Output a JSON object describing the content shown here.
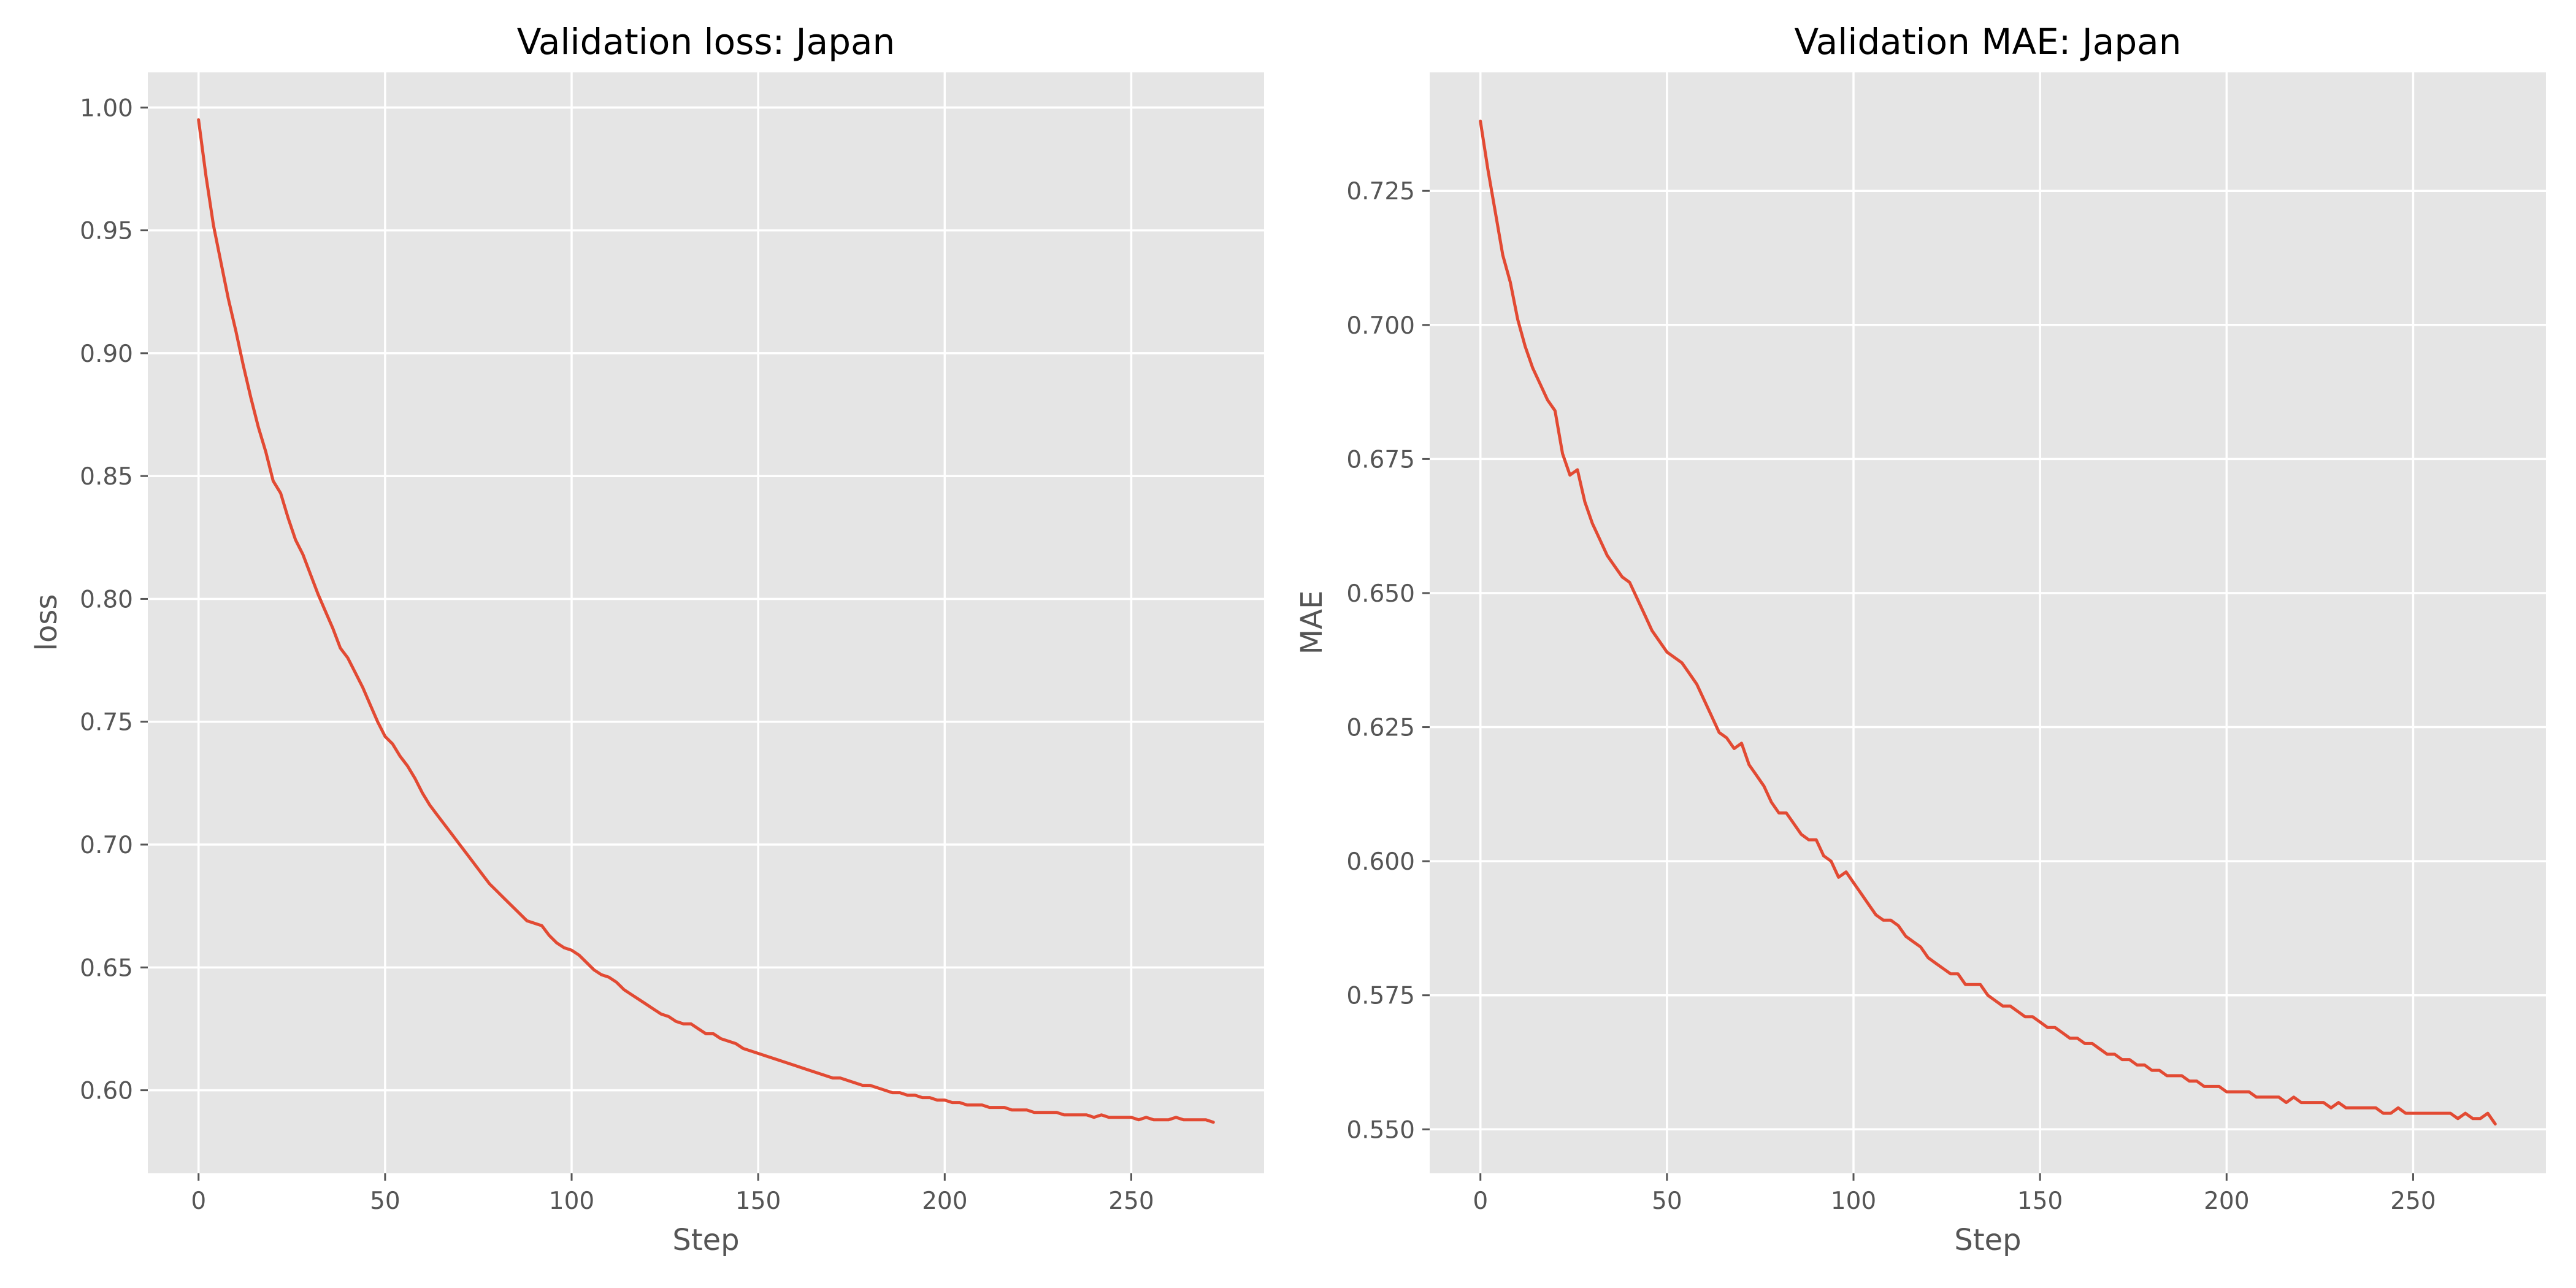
{
  "chart_data": [
    {
      "type": "line",
      "title": "Validation loss: Japan",
      "xlabel": "Step",
      "ylabel": "loss",
      "xlim": [
        -13.6,
        285.6
      ],
      "ylim": [
        0.5662,
        1.0143
      ],
      "xticks": [
        0,
        50,
        100,
        150,
        200,
        250
      ],
      "xtick_labels": [
        "0",
        "50",
        "100",
        "150",
        "200",
        "250"
      ],
      "yticks": [
        0.6,
        0.65,
        0.7,
        0.75,
        0.8,
        0.85,
        0.9,
        0.95,
        1.0
      ],
      "ytick_labels": [
        "0.60",
        "0.65",
        "0.70",
        "0.75",
        "0.80",
        "0.85",
        "0.90",
        "0.95",
        "1.00"
      ],
      "grid": true,
      "series": [
        {
          "color": "#E24A33",
          "x": [
            0,
            2,
            4,
            6,
            8,
            10,
            12,
            14,
            16,
            18,
            20,
            22,
            24,
            26,
            28,
            30,
            32,
            34,
            36,
            38,
            40,
            42,
            44,
            46,
            48,
            50,
            52,
            54,
            56,
            58,
            60,
            62,
            64,
            66,
            68,
            70,
            72,
            74,
            76,
            78,
            80,
            82,
            84,
            86,
            88,
            90,
            92,
            94,
            96,
            98,
            100,
            102,
            104,
            106,
            108,
            110,
            112,
            114,
            116,
            118,
            120,
            122,
            124,
            126,
            128,
            130,
            132,
            134,
            136,
            138,
            140,
            142,
            144,
            146,
            148,
            150,
            152,
            154,
            156,
            158,
            160,
            162,
            164,
            166,
            168,
            170,
            172,
            174,
            176,
            178,
            180,
            182,
            184,
            186,
            188,
            190,
            192,
            194,
            196,
            198,
            200,
            202,
            204,
            206,
            208,
            210,
            212,
            214,
            216,
            218,
            220,
            222,
            224,
            226,
            228,
            230,
            232,
            234,
            236,
            238,
            240,
            242,
            244,
            246,
            248,
            250,
            252,
            254,
            256,
            258,
            260,
            262,
            264,
            266,
            268,
            270,
            272
          ],
          "y": [
            0.995,
            0.972,
            0.952,
            0.937,
            0.922,
            0.909,
            0.895,
            0.882,
            0.87,
            0.86,
            0.848,
            0.843,
            0.833,
            0.824,
            0.818,
            0.81,
            0.802,
            0.795,
            0.788,
            0.78,
            0.776,
            0.77,
            0.764,
            0.757,
            0.75,
            0.744,
            0.741,
            0.736,
            0.732,
            0.727,
            0.721,
            0.716,
            0.712,
            0.708,
            0.704,
            0.7,
            0.696,
            0.692,
            0.688,
            0.684,
            0.681,
            0.678,
            0.675,
            0.672,
            0.669,
            0.668,
            0.667,
            0.663,
            0.66,
            0.658,
            0.657,
            0.655,
            0.652,
            0.649,
            0.647,
            0.646,
            0.644,
            0.641,
            0.639,
            0.637,
            0.635,
            0.633,
            0.631,
            0.63,
            0.628,
            0.627,
            0.627,
            0.625,
            0.623,
            0.623,
            0.621,
            0.62,
            0.619,
            0.617,
            0.616,
            0.615,
            0.614,
            0.613,
            0.612,
            0.611,
            0.61,
            0.609,
            0.608,
            0.607,
            0.606,
            0.605,
            0.605,
            0.604,
            0.603,
            0.602,
            0.602,
            0.601,
            0.6,
            0.599,
            0.599,
            0.598,
            0.598,
            0.597,
            0.597,
            0.596,
            0.596,
            0.595,
            0.595,
            0.594,
            0.594,
            0.594,
            0.593,
            0.593,
            0.593,
            0.592,
            0.592,
            0.592,
            0.591,
            0.591,
            0.591,
            0.591,
            0.59,
            0.59,
            0.59,
            0.59,
            0.589,
            0.59,
            0.589,
            0.589,
            0.589,
            0.589,
            0.588,
            0.589,
            0.588,
            0.588,
            0.588,
            0.589,
            0.588,
            0.588,
            0.588,
            0.588,
            0.587
          ]
        }
      ]
    },
    {
      "type": "line",
      "title": "Validation MAE: Japan",
      "xlabel": "Step",
      "ylabel": "MAE",
      "xlim": [
        -13.6,
        285.6
      ],
      "ylim": [
        0.5418,
        0.7471
      ],
      "xticks": [
        0,
        50,
        100,
        150,
        200,
        250
      ],
      "xtick_labels": [
        "0",
        "50",
        "100",
        "150",
        "200",
        "250"
      ],
      "yticks": [
        0.55,
        0.575,
        0.6,
        0.625,
        0.65,
        0.675,
        0.7,
        0.725
      ],
      "ytick_labels": [
        "0.550",
        "0.575",
        "0.600",
        "0.625",
        "0.650",
        "0.675",
        "0.700",
        "0.725"
      ],
      "grid": true,
      "series": [
        {
          "color": "#E24A33",
          "x": [
            0,
            2,
            4,
            6,
            8,
            10,
            12,
            14,
            16,
            18,
            20,
            22,
            24,
            26,
            28,
            30,
            32,
            34,
            36,
            38,
            40,
            42,
            44,
            46,
            48,
            50,
            52,
            54,
            56,
            58,
            60,
            62,
            64,
            66,
            68,
            70,
            72,
            74,
            76,
            78,
            80,
            82,
            84,
            86,
            88,
            90,
            92,
            94,
            96,
            98,
            100,
            102,
            104,
            106,
            108,
            110,
            112,
            114,
            116,
            118,
            120,
            122,
            124,
            126,
            128,
            130,
            132,
            134,
            136,
            138,
            140,
            142,
            144,
            146,
            148,
            150,
            152,
            154,
            156,
            158,
            160,
            162,
            164,
            166,
            168,
            170,
            172,
            174,
            176,
            178,
            180,
            182,
            184,
            186,
            188,
            190,
            192,
            194,
            196,
            198,
            200,
            202,
            204,
            206,
            208,
            210,
            212,
            214,
            216,
            218,
            220,
            222,
            224,
            226,
            228,
            230,
            232,
            234,
            236,
            238,
            240,
            242,
            244,
            246,
            248,
            250,
            252,
            254,
            256,
            258,
            260,
            262,
            264,
            266,
            268,
            270,
            272
          ],
          "y": [
            0.738,
            0.729,
            0.721,
            0.713,
            0.708,
            0.701,
            0.696,
            0.692,
            0.689,
            0.686,
            0.684,
            0.676,
            0.672,
            0.673,
            0.667,
            0.663,
            0.66,
            0.657,
            0.655,
            0.653,
            0.652,
            0.649,
            0.646,
            0.643,
            0.641,
            0.639,
            0.638,
            0.637,
            0.635,
            0.633,
            0.63,
            0.627,
            0.624,
            0.623,
            0.621,
            0.622,
            0.618,
            0.616,
            0.614,
            0.611,
            0.609,
            0.609,
            0.607,
            0.605,
            0.604,
            0.604,
            0.601,
            0.6,
            0.597,
            0.598,
            0.596,
            0.594,
            0.592,
            0.59,
            0.589,
            0.589,
            0.588,
            0.586,
            0.585,
            0.584,
            0.582,
            0.581,
            0.58,
            0.579,
            0.579,
            0.577,
            0.577,
            0.577,
            0.575,
            0.574,
            0.573,
            0.573,
            0.572,
            0.571,
            0.571,
            0.57,
            0.569,
            0.569,
            0.568,
            0.567,
            0.567,
            0.566,
            0.566,
            0.565,
            0.564,
            0.564,
            0.563,
            0.563,
            0.562,
            0.562,
            0.561,
            0.561,
            0.56,
            0.56,
            0.56,
            0.559,
            0.559,
            0.558,
            0.558,
            0.558,
            0.557,
            0.557,
            0.557,
            0.557,
            0.556,
            0.556,
            0.556,
            0.556,
            0.555,
            0.556,
            0.555,
            0.555,
            0.555,
            0.555,
            0.554,
            0.555,
            0.554,
            0.554,
            0.554,
            0.554,
            0.554,
            0.553,
            0.553,
            0.554,
            0.553,
            0.553,
            0.553,
            0.553,
            0.553,
            0.553,
            0.553,
            0.552,
            0.553,
            0.552,
            0.552,
            0.553,
            0.551
          ]
        }
      ]
    }
  ]
}
